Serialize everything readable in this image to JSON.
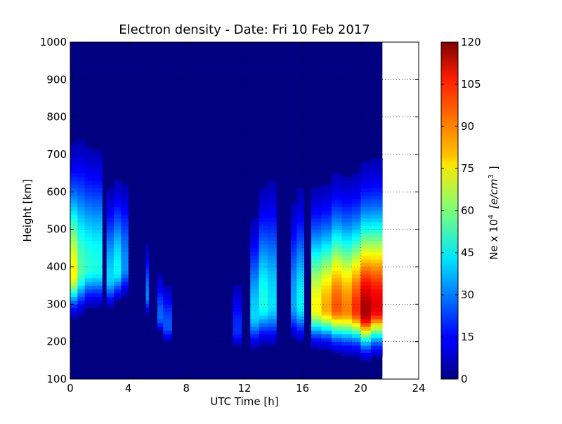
{
  "chart_data": {
    "type": "heatmap",
    "title": "Electron density - Date: Fri 10 Feb 2017",
    "xlabel": "UTC Time [h]",
    "ylabel": "Height [km]",
    "xlim": [
      0,
      24
    ],
    "ylim": [
      100,
      1000
    ],
    "x_ticks": [
      "0",
      "4",
      "8",
      "12",
      "16",
      "20",
      "24"
    ],
    "y_ticks": [
      "100",
      "200",
      "300",
      "400",
      "500",
      "600",
      "700",
      "800",
      "900",
      "1000"
    ],
    "grid": true,
    "data_end_hour": 21.5,
    "colormap": "jet",
    "colorbar": {
      "label_prefix": "Ne x 10",
      "label_exp": "4",
      "label_unit": "[e/cm",
      "label_unit_exp": "3",
      "label_close": "]",
      "range": [
        0,
        120
      ],
      "ticks": [
        "0",
        "15",
        "30",
        "45",
        "60",
        "75",
        "90",
        "105",
        "120"
      ]
    },
    "series_columns": [
      {
        "t": [
          0.0,
          0.5
        ],
        "peak_height": 380,
        "peak_value": 75,
        "half_width": 70
      },
      {
        "t": [
          0.5,
          1.0
        ],
        "peak_height": 390,
        "peak_value": 55,
        "half_width": 75
      },
      {
        "t": [
          1.0,
          1.5
        ],
        "peak_height": 400,
        "peak_value": 50,
        "half_width": 70
      },
      {
        "t": [
          1.5,
          2.2
        ],
        "peak_height": 400,
        "peak_value": 48,
        "half_width": 70
      },
      {
        "t": [
          2.2,
          2.5
        ],
        "peak_height": 400,
        "peak_value": 3,
        "half_width": 50
      },
      {
        "t": [
          2.5,
          3.0
        ],
        "peak_height": 370,
        "peak_value": 40,
        "half_width": 55
      },
      {
        "t": [
          3.0,
          3.5
        ],
        "peak_height": 390,
        "peak_value": 45,
        "half_width": 55
      },
      {
        "t": [
          3.5,
          4.0
        ],
        "peak_height": 400,
        "peak_value": 32,
        "half_width": 55
      },
      {
        "t": [
          4.0,
          5.2
        ],
        "peak_height": 400,
        "peak_value": 5,
        "half_width": 50
      },
      {
        "t": [
          5.2,
          5.4
        ],
        "peak_height": 320,
        "peak_value": 30,
        "half_width": 35
      },
      {
        "t": [
          5.4,
          6.0
        ],
        "peak_height": 300,
        "peak_value": 3,
        "half_width": 40
      },
      {
        "t": [
          6.0,
          6.4
        ],
        "peak_height": 265,
        "peak_value": 27,
        "half_width": 30
      },
      {
        "t": [
          6.4,
          7.0
        ],
        "peak_height": 240,
        "peak_value": 25,
        "half_width": 30
      },
      {
        "t": [
          7.0,
          11.2
        ],
        "peak_height": 300,
        "peak_value": 1,
        "half_width": 50
      },
      {
        "t": [
          11.2,
          11.8
        ],
        "peak_height": 230,
        "peak_value": 20,
        "half_width": 35
      },
      {
        "t": [
          11.8,
          12.4
        ],
        "peak_height": 230,
        "peak_value": 5,
        "half_width": 40
      },
      {
        "t": [
          12.4,
          13.0
        ],
        "peak_height": 270,
        "peak_value": 40,
        "half_width": 60
      },
      {
        "t": [
          13.0,
          13.6
        ],
        "peak_height": 300,
        "peak_value": 48,
        "half_width": 70
      },
      {
        "t": [
          13.6,
          14.2
        ],
        "peak_height": 300,
        "peak_value": 42,
        "half_width": 75
      },
      {
        "t": [
          14.2,
          15.2
        ],
        "peak_height": 300,
        "peak_value": 2,
        "half_width": 50
      },
      {
        "t": [
          15.2,
          15.6
        ],
        "peak_height": 300,
        "peak_value": 35,
        "half_width": 65
      },
      {
        "t": [
          15.6,
          16.1
        ],
        "peak_height": 300,
        "peak_value": 44,
        "half_width": 70
      },
      {
        "t": [
          16.1,
          16.6
        ],
        "peak_height": 300,
        "peak_value": 2,
        "half_width": 50
      },
      {
        "t": [
          16.6,
          17.3
        ],
        "peak_height": 290,
        "peak_value": 75,
        "half_width": 65
      },
      {
        "t": [
          17.3,
          18.0
        ],
        "peak_height": 290,
        "peak_value": 85,
        "half_width": 65
      },
      {
        "t": [
          18.0,
          18.7
        ],
        "peak_height": 290,
        "peak_value": 95,
        "half_width": 70
      },
      {
        "t": [
          18.7,
          19.4
        ],
        "peak_height": 285,
        "peak_value": 90,
        "half_width": 70
      },
      {
        "t": [
          19.4,
          20.0
        ],
        "peak_height": 285,
        "peak_value": 100,
        "half_width": 70
      },
      {
        "t": [
          20.0,
          20.7
        ],
        "peak_height": 280,
        "peak_value": 115,
        "half_width": 75
      },
      {
        "t": [
          20.7,
          21.5
        ],
        "peak_height": 290,
        "peak_value": 108,
        "half_width": 75
      }
    ]
  }
}
